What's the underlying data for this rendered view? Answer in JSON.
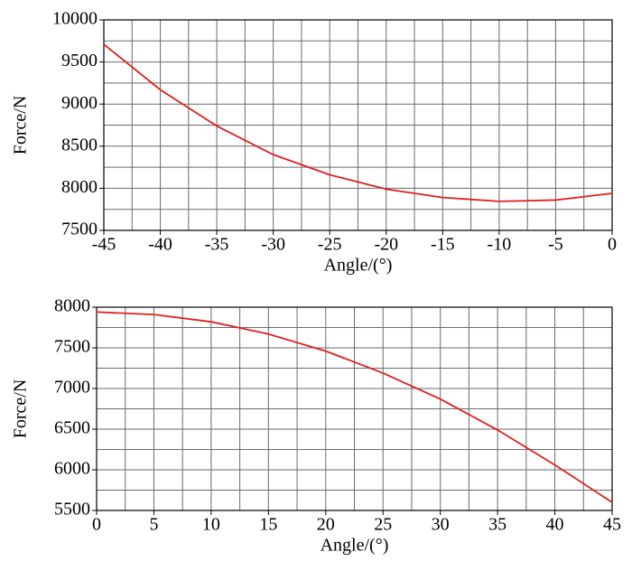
{
  "chart_data": [
    {
      "type": "line",
      "x_label": "Angle/(°)",
      "y_label": "Force/N",
      "x": [
        -45,
        -40,
        -35,
        -30,
        -25,
        -20,
        -15,
        -10,
        -5,
        0
      ],
      "series": [
        {
          "color": "#e0201e",
          "values": [
            9710,
            9170,
            8740,
            8400,
            8160,
            7990,
            7890,
            7845,
            7860,
            7940
          ]
        }
      ],
      "xlim": [
        -45,
        0
      ],
      "xticks": [
        -45,
        -40,
        -35,
        -30,
        -25,
        -20,
        -15,
        -10,
        -5,
        0
      ],
      "x_minor_ticks": [
        -42.5,
        -37.5,
        -32.5,
        -27.5,
        -22.5,
        -17.5,
        -12.5,
        -7.5,
        -2.5
      ],
      "ylim": [
        7500,
        10000
      ],
      "yticks": [
        7500,
        8000,
        8500,
        9000,
        9500,
        10000
      ],
      "y_minor_ticks": [
        7750,
        8250,
        8750,
        9250,
        9750
      ],
      "grid": true
    },
    {
      "type": "line",
      "x_label": "Angle/(°)",
      "y_label": "Force/N",
      "x": [
        0,
        5,
        10,
        15,
        20,
        25,
        30,
        35,
        40,
        45
      ],
      "series": [
        {
          "color": "#e0201e",
          "values": [
            7940,
            7910,
            7820,
            7670,
            7460,
            7190,
            6870,
            6490,
            6060,
            5600
          ]
        }
      ],
      "xlim": [
        0,
        45
      ],
      "xticks": [
        0,
        5,
        10,
        15,
        20,
        25,
        30,
        35,
        40,
        45
      ],
      "x_minor_ticks": [
        2.5,
        7.5,
        12.5,
        17.5,
        22.5,
        27.5,
        32.5,
        37.5,
        42.5
      ],
      "ylim": [
        5500,
        8000
      ],
      "yticks": [
        5500,
        6000,
        6500,
        7000,
        7500,
        8000
      ],
      "y_minor_ticks": [
        5750,
        6250,
        6750,
        7250,
        7750
      ],
      "grid": true
    }
  ]
}
